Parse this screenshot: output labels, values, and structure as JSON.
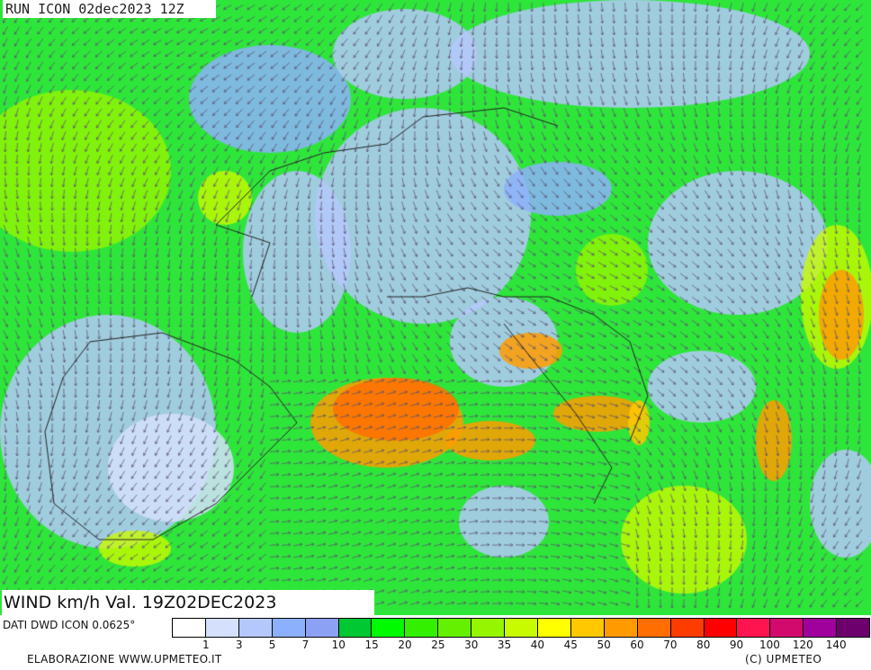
{
  "header": {
    "run_title": "RUN ICON 02dec2023 12Z"
  },
  "map": {
    "variable_title": "WIND km/h Val. 19Z02DEC2023",
    "base_color": "#2ee63a",
    "region": "Europe / Mediterranean"
  },
  "legend": {
    "source": "DATI DWD ICON 0.0625°",
    "colors": [
      "#ffffff",
      "#d4e0fc",
      "#b4c8fc",
      "#8cb0fc",
      "#8ca0f4",
      "#00c832",
      "#00fa00",
      "#32f000",
      "#64f000",
      "#96f500",
      "#c8fa00",
      "#ffff00",
      "#ffc800",
      "#ff9b00",
      "#ff6e00",
      "#ff3c00",
      "#ff0000",
      "#ff1450",
      "#d20a6e",
      "#a0009b",
      "#6e006e"
    ],
    "labels": [
      "1",
      "3",
      "5",
      "7",
      "10",
      "15",
      "20",
      "25",
      "30",
      "35",
      "40",
      "45",
      "50",
      "60",
      "70",
      "80",
      "90",
      "100",
      "120",
      "140"
    ]
  },
  "footer": {
    "elaborazione": "ELABORAZIONE WWW.UPMETEO.IT",
    "copyright": "(C)  UPMETEO"
  }
}
